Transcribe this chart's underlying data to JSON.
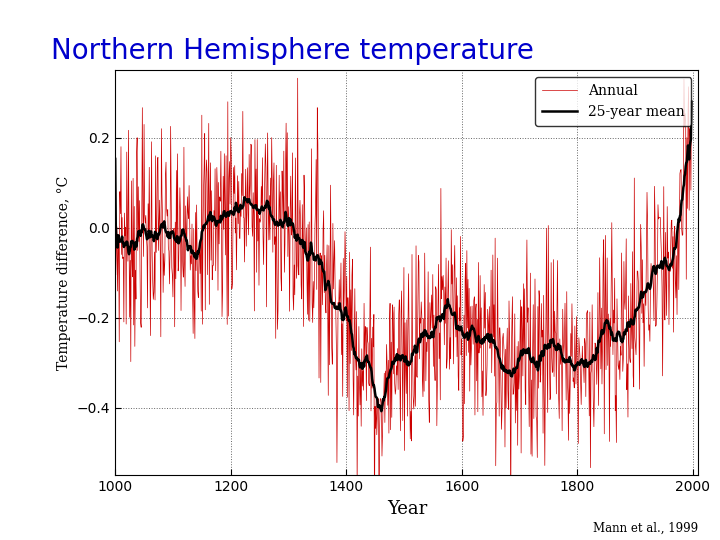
{
  "title": "Northern Hemisphere temperature",
  "title_color": "#0000cc",
  "title_fontsize": 20,
  "xlabel": "Year",
  "ylabel": "Temperature difference, °C",
  "xlim": [
    1000,
    2010
  ],
  "ylim": [
    -0.55,
    0.35
  ],
  "yticks": [
    -0.4,
    -0.2,
    0.0,
    0.2
  ],
  "xticks": [
    1000,
    1200,
    1400,
    1600,
    1800,
    2000
  ],
  "grid_color": "#000000",
  "annual_color": "#cc0000",
  "mean_color": "#000000",
  "annual_linewidth": 0.5,
  "mean_linewidth": 1.8,
  "legend_annual": "Annual",
  "legend_mean": "25-year mean",
  "citation": "Mann et al., 1999",
  "bg_color": "#ffffff",
  "axes_bg_color": "#ffffff"
}
